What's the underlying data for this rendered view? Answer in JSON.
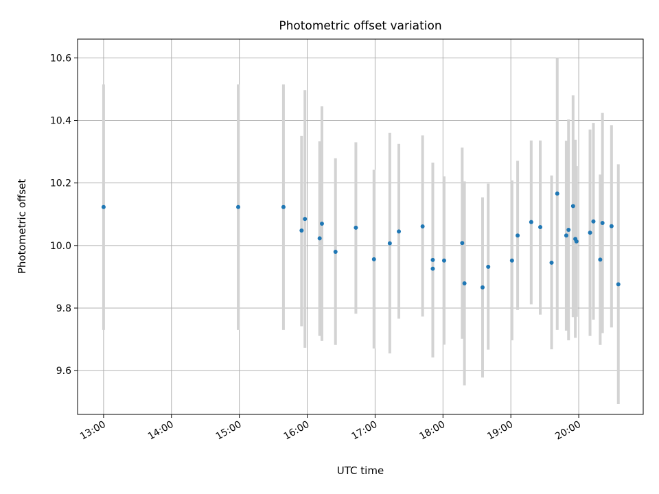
{
  "chart_data": {
    "type": "scatter",
    "title": "Photometric offset variation",
    "xlabel": "UTC time",
    "ylabel": "Photometric offset",
    "xlim": [
      "12:37",
      "20:57"
    ],
    "ylim": [
      9.46,
      10.66
    ],
    "grid": true,
    "legend": "none",
    "x_ticks": [
      "13:00",
      "14:00",
      "15:00",
      "16:00",
      "17:00",
      "18:00",
      "19:00",
      "20:00"
    ],
    "y_ticks": [
      9.6,
      9.8,
      10.0,
      10.2,
      10.4,
      10.6
    ],
    "y_tick_labels": [
      "9.6",
      "9.8",
      "10.0",
      "10.2",
      "10.4",
      "10.6"
    ],
    "colors": {
      "points": "#1f77b4",
      "error_bars": "#d3d3d3",
      "grid": "#b0b0b0"
    },
    "points": [
      {
        "x": "13:00",
        "y": 10.123,
        "yerr_low": 9.73,
        "yerr_high": 10.515
      },
      {
        "x": "14:59",
        "y": 10.123,
        "yerr_low": 9.73,
        "yerr_high": 10.515
      },
      {
        "x": "15:39",
        "y": 10.123,
        "yerr_low": 9.73,
        "yerr_high": 10.515
      },
      {
        "x": "15:55",
        "y": 10.048,
        "yerr_low": 9.742,
        "yerr_high": 10.351
      },
      {
        "x": "15:58",
        "y": 10.085,
        "yerr_low": 9.673,
        "yerr_high": 10.497
      },
      {
        "x": "16:11",
        "y": 10.023,
        "yerr_low": 9.711,
        "yerr_high": 10.333
      },
      {
        "x": "16:13",
        "y": 10.07,
        "yerr_low": 9.695,
        "yerr_high": 10.445
      },
      {
        "x": "16:25",
        "y": 9.98,
        "yerr_low": 9.682,
        "yerr_high": 10.279
      },
      {
        "x": "16:43",
        "y": 10.057,
        "yerr_low": 9.782,
        "yerr_high": 10.33
      },
      {
        "x": "16:59",
        "y": 9.956,
        "yerr_low": 9.671,
        "yerr_high": 10.242
      },
      {
        "x": "17:13",
        "y": 10.007,
        "yerr_low": 9.655,
        "yerr_high": 10.36
      },
      {
        "x": "17:21",
        "y": 10.045,
        "yerr_low": 9.766,
        "yerr_high": 10.325
      },
      {
        "x": "17:42",
        "y": 10.061,
        "yerr_low": 9.773,
        "yerr_high": 10.352
      },
      {
        "x": "17:51",
        "y": 9.954,
        "yerr_low": 9.642,
        "yerr_high": 10.265
      },
      {
        "x": "17:51",
        "y": 9.926,
        "yerr_low": 9.642,
        "yerr_high": 10.265
      },
      {
        "x": "18:01",
        "y": 9.952,
        "yerr_low": 9.683,
        "yerr_high": 10.221
      },
      {
        "x": "18:17",
        "y": 10.008,
        "yerr_low": 9.702,
        "yerr_high": 10.313
      },
      {
        "x": "18:19",
        "y": 9.879,
        "yerr_low": 9.553,
        "yerr_high": 10.205
      },
      {
        "x": "18:35",
        "y": 9.866,
        "yerr_low": 9.578,
        "yerr_high": 10.154
      },
      {
        "x": "18:40",
        "y": 9.932,
        "yerr_low": 9.667,
        "yerr_high": 10.198
      },
      {
        "x": "19:01",
        "y": 9.952,
        "yerr_low": 9.697,
        "yerr_high": 10.208
      },
      {
        "x": "19:06",
        "y": 10.032,
        "yerr_low": 9.794,
        "yerr_high": 10.271
      },
      {
        "x": "19:18",
        "y": 10.075,
        "yerr_low": 9.812,
        "yerr_high": 10.336
      },
      {
        "x": "19:26",
        "y": 10.059,
        "yerr_low": 9.779,
        "yerr_high": 10.336
      },
      {
        "x": "19:36",
        "y": 9.945,
        "yerr_low": 9.668,
        "yerr_high": 10.224
      },
      {
        "x": "19:41",
        "y": 10.166,
        "yerr_low": 9.73,
        "yerr_high": 10.6
      },
      {
        "x": "19:49",
        "y": 10.032,
        "yerr_low": 9.728,
        "yerr_high": 10.335
      },
      {
        "x": "19:51",
        "y": 10.05,
        "yerr_low": 9.697,
        "yerr_high": 10.403
      },
      {
        "x": "19:55",
        "y": 10.126,
        "yerr_low": 9.771,
        "yerr_high": 10.48
      },
      {
        "x": "19:57",
        "y": 10.021,
        "yerr_low": 9.705,
        "yerr_high": 10.338
      },
      {
        "x": "19:58",
        "y": 10.013,
        "yerr_low": 9.772,
        "yerr_high": 10.254
      },
      {
        "x": "20:10",
        "y": 10.041,
        "yerr_low": 9.711,
        "yerr_high": 10.371
      },
      {
        "x": "20:13",
        "y": 10.077,
        "yerr_low": 9.763,
        "yerr_high": 10.392
      },
      {
        "x": "20:19",
        "y": 9.955,
        "yerr_low": 9.682,
        "yerr_high": 10.227
      },
      {
        "x": "20:21",
        "y": 10.072,
        "yerr_low": 9.72,
        "yerr_high": 10.424
      },
      {
        "x": "20:29",
        "y": 10.062,
        "yerr_low": 9.738,
        "yerr_high": 10.385
      },
      {
        "x": "20:35",
        "y": 9.876,
        "yerr_low": 9.493,
        "yerr_high": 10.26
      }
    ]
  }
}
